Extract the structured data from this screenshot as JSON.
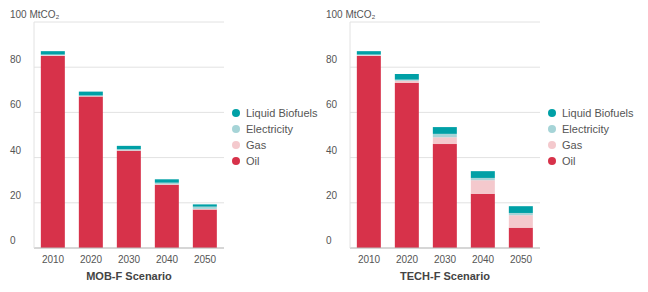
{
  "chart_data": [
    {
      "type": "bar",
      "title": "MOB-F Scenario",
      "stacked": true,
      "grid": true,
      "legend": "right",
      "categories": [
        "2010",
        "2020",
        "2030",
        "2040",
        "2050"
      ],
      "ylim": [
        0,
        100
      ],
      "yticks": [
        0,
        20,
        40,
        60,
        80,
        {
          "value": 100,
          "label": "100 MtCO₂"
        }
      ],
      "series": [
        {
          "name": "Oil",
          "color": "#d7324a",
          "values": [
            85,
            67,
            43,
            28,
            17
          ]
        },
        {
          "name": "Gas",
          "color": "#f4c9cd",
          "values": [
            0.3,
            0.2,
            0.2,
            0.2,
            0.3
          ]
        },
        {
          "name": "Electricity",
          "color": "#a6d4d7",
          "values": [
            0.3,
            0.3,
            0.5,
            0.7,
            1
          ]
        },
        {
          "name": "Liquid Biofuels",
          "color": "#00a0a6",
          "values": [
            1.5,
            1.7,
            1.5,
            1.5,
            1
          ]
        }
      ]
    },
    {
      "type": "bar",
      "title": "TECH-F Scenario",
      "stacked": true,
      "grid": true,
      "legend": "right",
      "categories": [
        "2010",
        "2020",
        "2030",
        "2040",
        "2050"
      ],
      "ylim": [
        0,
        100
      ],
      "yticks": [
        0,
        20,
        40,
        60,
        80,
        {
          "value": 100,
          "label": "100 MtCO₂"
        }
      ],
      "series": [
        {
          "name": "Oil",
          "color": "#d7324a",
          "values": [
            85,
            73,
            46,
            24,
            9
          ]
        },
        {
          "name": "Gas",
          "color": "#f4c9cd",
          "values": [
            0.3,
            1,
            3,
            6,
            5.5
          ]
        },
        {
          "name": "Electricity",
          "color": "#a6d4d7",
          "values": [
            0.3,
            0.5,
            1.5,
            1,
            1
          ]
        },
        {
          "name": "Liquid Biofuels",
          "color": "#00a0a6",
          "values": [
            1.5,
            2.5,
            3,
            3,
            3
          ]
        }
      ]
    }
  ]
}
